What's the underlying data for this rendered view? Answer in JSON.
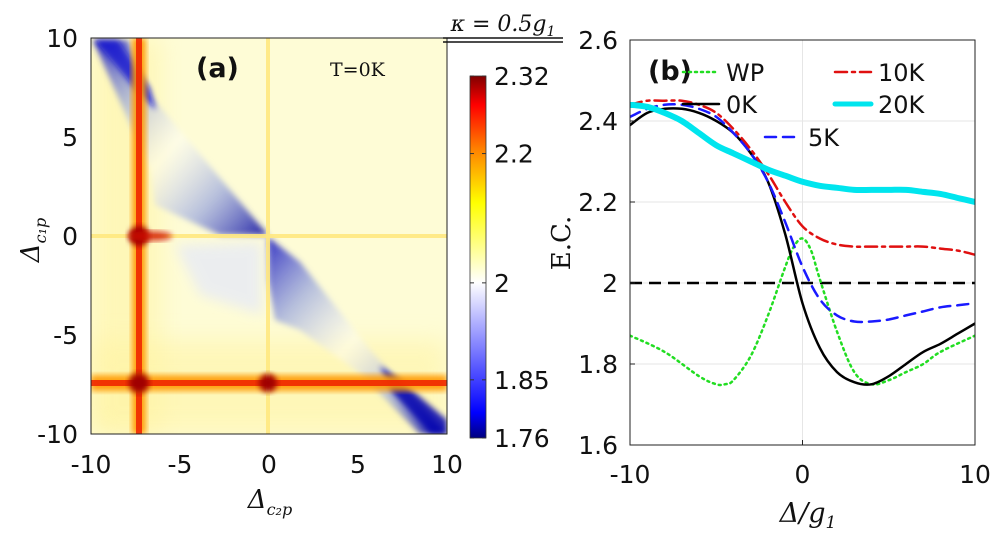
{
  "header": {
    "kappa_label": "κ = 0.5g",
    "kappa_sub": "1"
  },
  "chart_data": [
    {
      "type": "heatmap",
      "panel_label": "(a)",
      "annotation": "T=0K",
      "xlabel": "Δ",
      "xlabel_sub": "c₂p",
      "ylabel": "Δ",
      "ylabel_sub": "c₁p",
      "xlim": [
        -10,
        10
      ],
      "ylim": [
        -10,
        10
      ],
      "x_ticks": [
        -10,
        -5,
        0,
        5,
        10
      ],
      "y_ticks": [
        10,
        5,
        0,
        -5,
        -10
      ],
      "x_tick_labels": [
        "-10",
        "-5",
        "0",
        "5",
        "10"
      ],
      "y_tick_labels": [
        "10",
        "5",
        "0",
        "-5",
        "-10"
      ],
      "colorbar": {
        "min": 1.76,
        "max": 2.32,
        "ticks": [
          2.32,
          2.2,
          2,
          1.85,
          1.76
        ],
        "tick_labels": [
          "2.32",
          "2.2",
          "2",
          "1.85",
          "1.76"
        ],
        "colormap": [
          "#000080",
          "#0000ff",
          "#ffffff",
          "#ffff00",
          "#ff8000",
          "#ff0000",
          "#800000"
        ]
      },
      "features": {
        "resonance_lines_x": [
          -7.5,
          0
        ],
        "resonance_lines_y": [
          -7.5,
          0
        ],
        "anti_diagonal_blue": "strong blue band along Δc1p ≈ -Δc2p",
        "hotspots": [
          [
            -7.5,
            0
          ],
          [
            -7.5,
            -7.5
          ],
          [
            0,
            -7.5
          ]
        ]
      }
    },
    {
      "type": "line",
      "panel_label": "(b)",
      "xlabel": "Δ/g",
      "xlabel_sub": "1",
      "ylabel": "E.C.",
      "xlim": [
        -10,
        10
      ],
      "ylim": [
        1.6,
        2.6
      ],
      "x_ticks": [
        -10,
        0,
        10
      ],
      "x_tick_labels": [
        "-10",
        "0",
        "10"
      ],
      "y_ticks": [
        1.6,
        1.8,
        2,
        2.2,
        2.4,
        2.6
      ],
      "y_tick_labels": [
        "1.6",
        "1.8",
        "2",
        "2.2",
        "2.4",
        "2.6"
      ],
      "reference_line": {
        "y": 2.0,
        "color": "#000000",
        "style": "dashed"
      },
      "series": [
        {
          "name": "WP",
          "color": "#22dd22",
          "style": "dotted",
          "width": 2.5,
          "x": [
            -10,
            -8,
            -6,
            -5,
            -4.5,
            -4,
            -3,
            -2,
            -1,
            -0.5,
            0,
            0.5,
            1,
            2,
            3,
            4,
            5,
            6,
            7,
            8,
            10
          ],
          "y": [
            1.87,
            1.83,
            1.77,
            1.75,
            1.75,
            1.76,
            1.82,
            1.92,
            2.04,
            2.09,
            2.11,
            2.08,
            2.01,
            1.88,
            1.78,
            1.75,
            1.76,
            1.78,
            1.8,
            1.83,
            1.87
          ]
        },
        {
          "name": "0K",
          "color": "#000000",
          "style": "solid",
          "width": 2.5,
          "x": [
            -10,
            -9,
            -8,
            -7,
            -6,
            -5,
            -4,
            -3,
            -2,
            -1,
            0,
            1,
            2,
            3,
            4,
            5,
            6,
            7,
            8,
            9,
            10
          ],
          "y": [
            2.39,
            2.42,
            2.43,
            2.43,
            2.42,
            2.4,
            2.37,
            2.32,
            2.25,
            2.12,
            1.95,
            1.84,
            1.78,
            1.755,
            1.75,
            1.77,
            1.8,
            1.83,
            1.85,
            1.875,
            1.9
          ]
        },
        {
          "name": "5K",
          "color": "#1a1aff",
          "style": "dashed",
          "width": 2.5,
          "x": [
            -10,
            -9,
            -8,
            -7,
            -6,
            -5,
            -4,
            -3,
            -2,
            -1,
            0,
            1,
            2,
            3,
            4,
            5,
            6,
            7,
            8,
            9,
            10
          ],
          "y": [
            2.41,
            2.43,
            2.44,
            2.44,
            2.43,
            2.41,
            2.37,
            2.32,
            2.25,
            2.15,
            2.04,
            1.96,
            1.92,
            1.905,
            1.905,
            1.91,
            1.92,
            1.93,
            1.94,
            1.945,
            1.95
          ]
        },
        {
          "name": "10K",
          "color": "#e01010",
          "style": "dashdot",
          "width": 2.5,
          "x": [
            -10,
            -9,
            -8,
            -7,
            -6,
            -5,
            -4,
            -3,
            -2,
            -1,
            0,
            1,
            2,
            3,
            4,
            5,
            6,
            7,
            8,
            9,
            10
          ],
          "y": [
            2.44,
            2.45,
            2.45,
            2.45,
            2.44,
            2.42,
            2.38,
            2.33,
            2.27,
            2.2,
            2.14,
            2.11,
            2.095,
            2.09,
            2.09,
            2.09,
            2.09,
            2.09,
            2.085,
            2.08,
            2.07
          ]
        },
        {
          "name": "20K",
          "color": "#00e5ee",
          "style": "solid",
          "width": 6,
          "x": [
            -10,
            -9,
            -8,
            -7,
            -6,
            -5,
            -4,
            -3,
            -2,
            -1,
            0,
            1,
            2,
            3,
            4,
            5,
            6,
            7,
            8,
            9,
            10
          ],
          "y": [
            2.44,
            2.435,
            2.42,
            2.4,
            2.37,
            2.34,
            2.32,
            2.3,
            2.28,
            2.265,
            2.25,
            2.24,
            2.235,
            2.23,
            2.23,
            2.23,
            2.23,
            2.225,
            2.22,
            2.21,
            2.2
          ]
        }
      ],
      "legend": {
        "placement": "top-right",
        "entries": [
          "WP",
          "10K",
          "0K",
          "20K",
          "5K"
        ]
      }
    }
  ]
}
